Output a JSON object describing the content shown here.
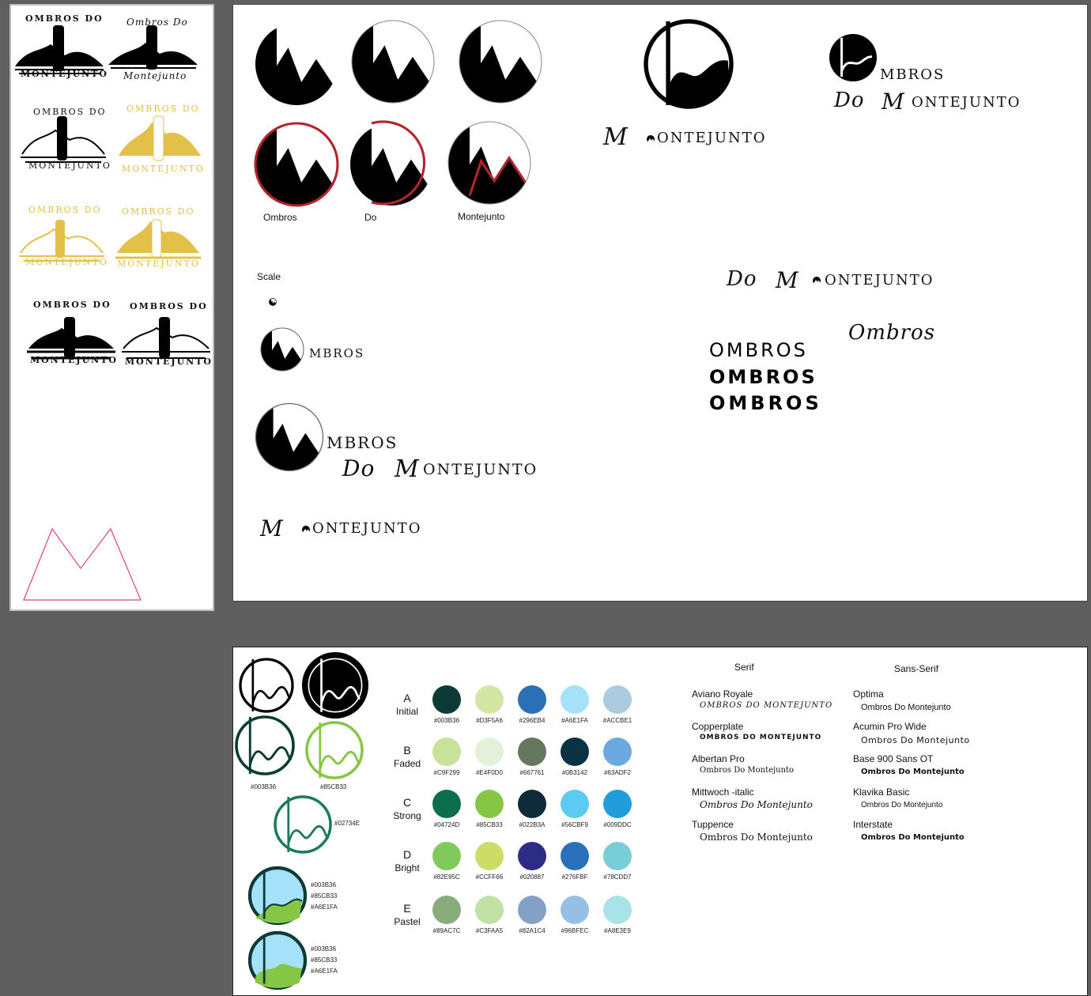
{
  "canvas": {
    "background": "#5f5f5f"
  },
  "left_board": {
    "badges": [
      {
        "top": "OMBROS DO",
        "bottom": "MONTEJUNTO",
        "style": "solid-black"
      },
      {
        "top": "Ombros Do",
        "bottom": "Montejunto",
        "style": "script-black"
      },
      {
        "top": "OMBROS DO",
        "bottom": "MONTEJUNTO",
        "style": "outline-black"
      },
      {
        "top": "OMBROS DO",
        "bottom": "MONTEJUNTO",
        "style": "gold-filled"
      },
      {
        "top": "OMBROS DO",
        "bottom": "MONTEJUNTO",
        "style": "gold-outline"
      },
      {
        "top": "OMBROS DO",
        "bottom": "MONTEJUNTO",
        "style": "gold-filled-2"
      },
      {
        "top": "OMBROS DO",
        "bottom": "MONTEJUNTO",
        "style": "black-filled"
      },
      {
        "top": "OMBROS DO",
        "bottom": "MONTEJUNTO",
        "style": "black-outline"
      }
    ],
    "colors": {
      "gold": "#e3c04a",
      "pink": "#e0447a",
      "black": "#000000"
    }
  },
  "main_board": {
    "logo_labels": [
      "Ombros",
      "Do",
      "Montejunto"
    ],
    "scale_label": "Scale",
    "wordmark_m": "M",
    "wordmark_ontejunto": "ONTEJUNTO",
    "mbros": "MBROS",
    "do_montejunto_do": "Do",
    "do_montejunto_m": "M",
    "do_montejunto_rest": "ONTEJUNTO",
    "ombros_italic": "Ombros",
    "ombros_weights": [
      "OMBROS",
      "OMBROS",
      "OMBROS"
    ],
    "accent_red": "#b3242e"
  },
  "bottom_board": {
    "logo_hexes": [
      "#003B36",
      "#85CB33",
      "#02734E"
    ],
    "combo_hexes": [
      [
        "#003B36",
        "#85CB33",
        "#A6E1FA"
      ],
      [
        "#003B36",
        "#85CB33",
        "#A6E1FA"
      ]
    ],
    "palette": [
      {
        "letter": "A",
        "name": "Initial",
        "colors": [
          "#003B36",
          "#D3F5A6",
          "#296EB4",
          "#A6E1FA",
          "#ACCBE1"
        ]
      },
      {
        "letter": "B",
        "name": "Faded",
        "colors": [
          "#C9F299",
          "#E4F0D0",
          "#667761",
          "#0B3142",
          "#63ADF2"
        ]
      },
      {
        "letter": "C",
        "name": "Strong",
        "colors": [
          "#04724D",
          "#85CB33",
          "#022B3A",
          "#56CBF9",
          "#009DDC"
        ]
      },
      {
        "letter": "D",
        "name": "Bright",
        "colors": [
          "#82E95C",
          "#CCFF66",
          "#020887",
          "#276FBF",
          "#78CDD7"
        ]
      },
      {
        "letter": "E",
        "name": "Pastel",
        "colors": [
          "#89AC7C",
          "#C3FAA5",
          "#82A1C4",
          "#96BFEC",
          "#A8E3E9"
        ]
      }
    ],
    "swatch_render": {
      "A": [
        "#0b3b34",
        "#d3e6a6",
        "#2b6fb4",
        "#a6e1fa",
        "#accbe1"
      ],
      "B": [
        "#c9e29a",
        "#e4f0d8",
        "#66775f",
        "#0b3142",
        "#6aaae0"
      ],
      "C": [
        "#0d6e4c",
        "#85c644",
        "#0d2b3a",
        "#5ccbf2",
        "#229ddc"
      ],
      "D": [
        "#82c95c",
        "#ccdc66",
        "#2c2b85",
        "#2a6fba",
        "#78cdd7"
      ],
      "E": [
        "#89ac7c",
        "#c3e1a5",
        "#82a1c4",
        "#96bfe6",
        "#a8e3e9"
      ]
    },
    "type": {
      "serif_heading": "Serif",
      "sans_heading": "Sans-Serif",
      "serif": [
        {
          "name": "Aviano Royale",
          "sample": "OMBROS DO MONTEJUNTO"
        },
        {
          "name": "Copperplate",
          "sample": "OMBROS DO MONTEJUNTO"
        },
        {
          "name": "Albertan Pro",
          "sample": "Ombros Do Montejunto"
        },
        {
          "name": "Mittwoch -italic",
          "sample": "Ombros Do Montejunto"
        },
        {
          "name": "Tuppence",
          "sample": "Ombros Do Montejunto"
        }
      ],
      "sans": [
        {
          "name": "Optima",
          "sample": "Ombros Do Montejunto"
        },
        {
          "name": "Acumin Pro Wide",
          "sample": "Ombros Do Montejunto"
        },
        {
          "name": "Base 900 Sans OT",
          "sample": "Ombros Do Montejunto"
        },
        {
          "name": "Klavika Basic",
          "sample": "Ombros Do Montejunto"
        },
        {
          "name": "Interstate",
          "sample": "Ombros Do Montejunto"
        }
      ]
    }
  }
}
